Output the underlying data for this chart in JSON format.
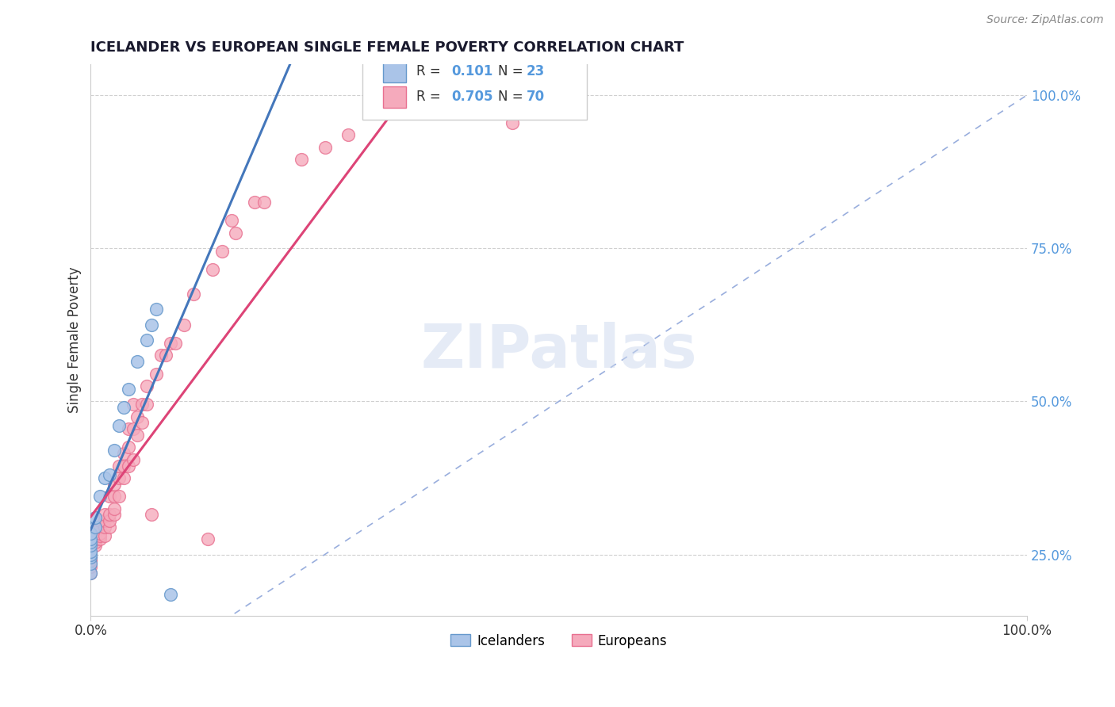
{
  "title": "ICELANDER VS EUROPEAN SINGLE FEMALE POVERTY CORRELATION CHART",
  "source": "Source: ZipAtlas.com",
  "ylabel": "Single Female Poverty",
  "icelandic_R": 0.101,
  "icelandic_N": 23,
  "european_R": 0.705,
  "european_N": 70,
  "background_color": "#ffffff",
  "grid_color": "#d0d0d0",
  "icelander_color": "#aac4e8",
  "icelander_edge_color": "#6699cc",
  "icelander_line_color": "#4477bb",
  "european_color": "#f5aabc",
  "european_edge_color": "#e87090",
  "european_line_color": "#dd4477",
  "diagonal_color": "#99aedd",
  "ytick_color": "#5599dd",
  "xlim": [
    0.0,
    1.0
  ],
  "ylim": [
    0.15,
    1.05
  ],
  "yticks": [
    0.25,
    0.5,
    0.75,
    1.0
  ],
  "ytick_labels": [
    "25.0%",
    "50.0%",
    "75.0%",
    "100.0%"
  ],
  "icelanders_x": [
    0.0,
    0.0,
    0.0,
    0.0,
    0.0,
    0.0,
    0.0,
    0.0,
    0.0,
    0.005,
    0.005,
    0.01,
    0.015,
    0.02,
    0.025,
    0.03,
    0.035,
    0.04,
    0.05,
    0.06,
    0.065,
    0.07,
    0.085
  ],
  "icelanders_y": [
    0.22,
    0.235,
    0.245,
    0.25,
    0.255,
    0.265,
    0.27,
    0.275,
    0.285,
    0.295,
    0.31,
    0.345,
    0.375,
    0.38,
    0.42,
    0.46,
    0.49,
    0.52,
    0.565,
    0.6,
    0.625,
    0.65,
    0.185
  ],
  "europeans_x": [
    0.0,
    0.0,
    0.0,
    0.0,
    0.0,
    0.0,
    0.0,
    0.0,
    0.0,
    0.0,
    0.005,
    0.005,
    0.005,
    0.005,
    0.005,
    0.01,
    0.01,
    0.01,
    0.01,
    0.01,
    0.015,
    0.015,
    0.015,
    0.015,
    0.02,
    0.02,
    0.02,
    0.02,
    0.025,
    0.025,
    0.025,
    0.025,
    0.03,
    0.03,
    0.03,
    0.035,
    0.035,
    0.035,
    0.04,
    0.04,
    0.04,
    0.045,
    0.045,
    0.045,
    0.05,
    0.05,
    0.055,
    0.055,
    0.06,
    0.06,
    0.065,
    0.07,
    0.075,
    0.08,
    0.085,
    0.09,
    0.1,
    0.11,
    0.125,
    0.13,
    0.14,
    0.15,
    0.155,
    0.175,
    0.185,
    0.225,
    0.25,
    0.275,
    0.45,
    0.465
  ],
  "europeans_y": [
    0.22,
    0.23,
    0.235,
    0.24,
    0.24,
    0.245,
    0.245,
    0.25,
    0.25,
    0.255,
    0.265,
    0.27,
    0.275,
    0.28,
    0.29,
    0.275,
    0.28,
    0.285,
    0.295,
    0.305,
    0.28,
    0.295,
    0.305,
    0.315,
    0.295,
    0.305,
    0.315,
    0.345,
    0.315,
    0.325,
    0.345,
    0.365,
    0.345,
    0.375,
    0.395,
    0.375,
    0.395,
    0.415,
    0.395,
    0.425,
    0.455,
    0.405,
    0.455,
    0.495,
    0.445,
    0.475,
    0.465,
    0.495,
    0.495,
    0.525,
    0.315,
    0.545,
    0.575,
    0.575,
    0.595,
    0.595,
    0.625,
    0.675,
    0.275,
    0.715,
    0.745,
    0.795,
    0.775,
    0.825,
    0.825,
    0.895,
    0.915,
    0.935,
    0.955,
    1.0
  ]
}
